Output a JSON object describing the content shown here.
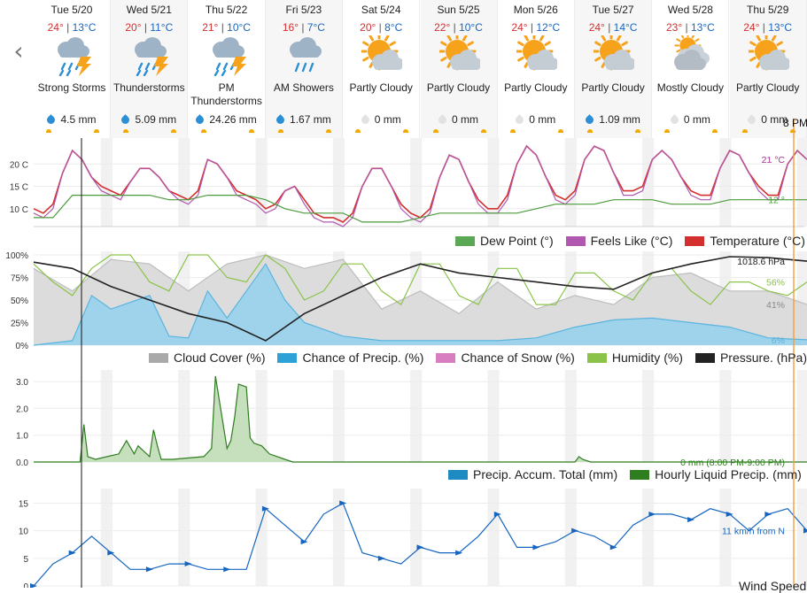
{
  "nav": {
    "back_icon": "chevron-left-icon"
  },
  "days": [
    {
      "date": "Tue 5/20",
      "hi": "24°",
      "lo": "13°C",
      "cond": "Strong Storms",
      "icon": "thunderstorm-icon",
      "precip": "4.5 mm",
      "wet": true
    },
    {
      "date": "Wed 5/21",
      "hi": "20°",
      "lo": "11°C",
      "cond": "Thunderstorms",
      "icon": "thunderstorm-icon",
      "precip": "5.09 mm",
      "wet": true
    },
    {
      "date": "Thu 5/22",
      "hi": "21°",
      "lo": "10°C",
      "cond": "PM Thunderstorms",
      "icon": "thunderstorm-icon",
      "precip": "24.26 mm",
      "wet": true
    },
    {
      "date": "Fri 5/23",
      "hi": "16°",
      "lo": "7°C",
      "cond": "AM Showers",
      "icon": "showers-icon",
      "precip": "1.67 mm",
      "wet": true
    },
    {
      "date": "Sat 5/24",
      "hi": "20°",
      "lo": "8°C",
      "cond": "Partly Cloudy",
      "icon": "partly-cloudy-icon",
      "precip": "0 mm",
      "wet": false
    },
    {
      "date": "Sun 5/25",
      "hi": "22°",
      "lo": "10°C",
      "cond": "Partly Cloudy",
      "icon": "partly-cloudy-icon",
      "precip": "0 mm",
      "wet": false
    },
    {
      "date": "Mon 5/26",
      "hi": "24°",
      "lo": "12°C",
      "cond": "Partly Cloudy",
      "icon": "partly-cloudy-icon",
      "precip": "0 mm",
      "wet": false
    },
    {
      "date": "Tue 5/27",
      "hi": "24°",
      "lo": "14°C",
      "cond": "Partly Cloudy",
      "icon": "partly-cloudy-icon",
      "precip": "1.09 mm",
      "wet": true
    },
    {
      "date": "Wed 5/28",
      "hi": "23°",
      "lo": "13°C",
      "cond": "Mostly Cloudy",
      "icon": "mostly-cloudy-icon",
      "precip": "0 mm",
      "wet": false
    },
    {
      "date": "Thu 5/29",
      "hi": "24°",
      "lo": "13°C",
      "cond": "Partly Cloudy",
      "icon": "partly-cloudy-icon",
      "precip": "0 mm",
      "wet": false
    }
  ],
  "cursor_label": "8 PM",
  "chart_data": [
    {
      "type": "line",
      "yticks": [
        "20 C",
        "15 C",
        "10 C"
      ],
      "series": [
        {
          "name": "Temperature (°C)",
          "color": "#d32f2f",
          "current_label": "21 °C",
          "x_days": [
            0,
            0.125,
            0.25,
            0.375,
            0.5,
            0.625,
            0.75,
            0.875,
            1,
            1.125,
            1.25,
            1.375,
            1.5,
            1.625,
            1.75,
            1.875,
            2,
            2.125,
            2.25,
            2.375,
            2.5,
            2.625,
            2.75,
            2.875,
            3,
            3.125,
            3.25,
            3.375,
            3.5,
            3.625,
            3.75,
            3.875,
            4,
            4.125,
            4.25,
            4.375,
            4.5,
            4.625,
            4.75,
            4.875,
            5,
            5.125,
            5.25,
            5.375,
            5.5,
            5.625,
            5.75,
            5.875,
            6,
            6.125,
            6.25,
            6.375,
            6.5,
            6.625,
            6.75,
            6.875,
            7,
            7.125,
            7.25,
            7.375,
            7.5,
            7.625,
            7.75,
            7.875,
            8,
            8.125,
            8.25,
            8.375,
            8.5,
            8.625,
            8.75,
            8.875,
            9,
            9.125,
            9.25,
            9.375,
            9.5,
            9.625,
            9.75,
            9.875,
            10
          ],
          "values": [
            10,
            9,
            11,
            18,
            23,
            21,
            17,
            15,
            14,
            13,
            16,
            19,
            19,
            17,
            14,
            13,
            12,
            14,
            21,
            20,
            17,
            14,
            13,
            12,
            10,
            11,
            14,
            15,
            12,
            9,
            8,
            8,
            7,
            9,
            15,
            19,
            19,
            15,
            11,
            9,
            8,
            10,
            17,
            22,
            21,
            16,
            12,
            10,
            10,
            13,
            20,
            24,
            22,
            17,
            13,
            12,
            14,
            21,
            24,
            23,
            18,
            14,
            14,
            15,
            21,
            23,
            21,
            17,
            14,
            13,
            13,
            19,
            23,
            22,
            18,
            15,
            13,
            13,
            20,
            23,
            21
          ]
        },
        {
          "name": "Feels Like (°C)",
          "color": "#b058b0",
          "current_label": "21 °C",
          "x_days": [
            0,
            0.125,
            0.25,
            0.375,
            0.5,
            0.625,
            0.75,
            0.875,
            1,
            1.125,
            1.25,
            1.375,
            1.5,
            1.625,
            1.75,
            1.875,
            2,
            2.125,
            2.25,
            2.375,
            2.5,
            2.625,
            2.75,
            2.875,
            3,
            3.125,
            3.25,
            3.375,
            3.5,
            3.625,
            3.75,
            3.875,
            4,
            4.125,
            4.25,
            4.375,
            4.5,
            4.625,
            4.75,
            4.875,
            5,
            5.125,
            5.25,
            5.375,
            5.5,
            5.625,
            5.75,
            5.875,
            6,
            6.125,
            6.25,
            6.375,
            6.5,
            6.625,
            6.75,
            6.875,
            7,
            7.125,
            7.25,
            7.375,
            7.5,
            7.625,
            7.75,
            7.875,
            8,
            8.125,
            8.25,
            8.375,
            8.5,
            8.625,
            8.75,
            8.875,
            9,
            9.125,
            9.25,
            9.375,
            9.5,
            9.625,
            9.75,
            9.875,
            10
          ],
          "values": [
            9,
            8,
            10,
            18,
            23,
            21,
            17,
            14,
            13,
            12,
            16,
            19,
            19,
            17,
            14,
            12,
            11,
            13,
            21,
            20,
            17,
            13,
            12,
            11,
            9,
            10,
            14,
            15,
            11,
            8,
            7,
            7,
            6,
            8,
            15,
            19,
            19,
            15,
            10,
            8,
            7,
            9,
            17,
            22,
            21,
            16,
            11,
            9,
            9,
            12,
            20,
            24,
            22,
            17,
            12,
            11,
            13,
            21,
            24,
            23,
            18,
            13,
            13,
            14,
            21,
            23,
            21,
            17,
            13,
            12,
            12,
            19,
            23,
            22,
            18,
            14,
            12,
            12,
            20,
            23,
            21
          ]
        },
        {
          "name": "Dew Point (°)",
          "color": "#4c9a3c",
          "current_label": "12 °",
          "x_days": [
            0,
            0.25,
            0.5,
            0.75,
            1,
            1.25,
            1.5,
            1.75,
            2,
            2.25,
            2.5,
            2.75,
            3,
            3.25,
            3.5,
            3.75,
            4,
            4.25,
            4.5,
            4.75,
            5,
            5.25,
            5.5,
            5.75,
            6,
            6.25,
            6.5,
            6.75,
            7,
            7.25,
            7.5,
            7.75,
            8,
            8.25,
            8.5,
            8.75,
            9,
            9.25,
            9.5,
            9.75,
            10
          ],
          "values": [
            8,
            8,
            13,
            13,
            13,
            13,
            13,
            12,
            12,
            13,
            13,
            13,
            12,
            10,
            9,
            9,
            9,
            7,
            7,
            7,
            8,
            9,
            9,
            9,
            9,
            9,
            10,
            11,
            11,
            11,
            12,
            12,
            12,
            11,
            11,
            11,
            12,
            12,
            12,
            12,
            12
          ]
        }
      ],
      "ylim": [
        6,
        25
      ]
    },
    {
      "type": "area",
      "yticks": [
        "100%",
        "75%",
        "50%",
        "25%",
        "0%"
      ],
      "series": [
        {
          "name": "Cloud Cover (%)",
          "color": "#9e9e9e",
          "current_label": "41%",
          "x_days": [
            0,
            0.5,
            1,
            1.5,
            2,
            2.5,
            3,
            3.5,
            4,
            4.5,
            5,
            5.5,
            6,
            6.5,
            7,
            7.5,
            8,
            8.5,
            9,
            9.5,
            10
          ],
          "values": [
            85,
            60,
            95,
            90,
            60,
            90,
            100,
            85,
            95,
            40,
            60,
            35,
            70,
            40,
            55,
            45,
            75,
            80,
            60,
            60,
            45
          ]
        },
        {
          "name": "Chance of Precip. (%)",
          "color": "#5ab4de",
          "current_label": "6%",
          "x_days": [
            0,
            0.5,
            0.75,
            1,
            1.5,
            1.75,
            2,
            2.25,
            2.5,
            2.75,
            3,
            3.25,
            3.5,
            4,
            4.5,
            5,
            5.5,
            6,
            6.5,
            7,
            7.5,
            8,
            8.5,
            9,
            9.5,
            10
          ],
          "values": [
            0,
            5,
            55,
            40,
            55,
            10,
            8,
            60,
            30,
            60,
            90,
            50,
            25,
            10,
            5,
            5,
            5,
            5,
            8,
            20,
            28,
            30,
            25,
            20,
            8,
            6
          ]
        },
        {
          "name": "Chance of Snow (%)",
          "color": "#d77dc0",
          "values": []
        },
        {
          "name": "Humidity (%)",
          "color": "#8bc34a",
          "current_label": "56%",
          "x_days": [
            0,
            0.25,
            0.5,
            0.75,
            1,
            1.25,
            1.5,
            1.75,
            2,
            2.25,
            2.5,
            2.75,
            3,
            3.25,
            3.5,
            3.75,
            4,
            4.25,
            4.5,
            4.75,
            5,
            5.25,
            5.5,
            5.75,
            6,
            6.25,
            6.5,
            6.75,
            7,
            7.25,
            7.5,
            7.75,
            8,
            8.25,
            8.5,
            8.75,
            9,
            9.25,
            9.5,
            9.75,
            10
          ],
          "values": [
            90,
            70,
            55,
            85,
            100,
            100,
            70,
            60,
            100,
            100,
            75,
            70,
            100,
            85,
            50,
            60,
            90,
            90,
            60,
            45,
            90,
            90,
            55,
            45,
            85,
            85,
            45,
            45,
            80,
            80,
            60,
            50,
            80,
            85,
            60,
            45,
            70,
            70,
            60,
            55,
            70
          ]
        },
        {
          "name": "Pressure. (hPa)",
          "color": "#222222",
          "current_label": "1018.6 hPa",
          "x_days": [
            0,
            0.5,
            1,
            1.5,
            2,
            2.5,
            3,
            3.5,
            4,
            4.5,
            5,
            5.5,
            6,
            6.5,
            7,
            7.5,
            8,
            8.5,
            9,
            9.5,
            10
          ],
          "values": [
            92,
            85,
            65,
            50,
            35,
            25,
            5,
            35,
            55,
            75,
            90,
            80,
            75,
            70,
            65,
            62,
            80,
            90,
            98,
            97,
            93
          ]
        }
      ],
      "ylim": [
        0,
        100
      ]
    },
    {
      "type": "area",
      "yticks": [
        "3.0",
        "2.0",
        "1.0",
        "0.0"
      ],
      "series": [
        {
          "name": "Precip. Accum. Total (mm)",
          "color": "#1e8ac2",
          "values": []
        },
        {
          "name": "Hourly Liquid Precip. (mm)",
          "color": "#2e7d1f",
          "current_label": "0 mm (8:00 PM-9:00 PM)",
          "x_days": [
            0,
            0.6,
            0.65,
            0.7,
            0.8,
            1.1,
            1.2,
            1.3,
            1.35,
            1.5,
            1.55,
            1.6,
            1.65,
            1.8,
            2.2,
            2.3,
            2.35,
            2.5,
            2.55,
            2.6,
            2.65,
            2.75,
            2.8,
            2.85,
            2.95,
            3.05,
            3.15,
            3.25,
            3.35,
            3.5,
            4,
            5,
            6,
            7,
            7.05,
            7.1,
            7.2,
            7.5,
            8,
            9,
            10
          ],
          "values": [
            0,
            0,
            1.4,
            0.2,
            0.1,
            0.3,
            0.8,
            0.3,
            0.6,
            0.2,
            1.2,
            0.6,
            0.1,
            0.1,
            0.2,
            0.5,
            3.2,
            0.5,
            0.8,
            1.7,
            2.9,
            2.8,
            0.9,
            0.7,
            0.6,
            0.3,
            0.2,
            0.1,
            0,
            0,
            0,
            0,
            0,
            0,
            0.2,
            0.1,
            0,
            0,
            0,
            0,
            0
          ]
        }
      ],
      "ylim": [
        0,
        3.3
      ]
    },
    {
      "type": "line",
      "yticks": [
        "15",
        "10",
        "5",
        "0"
      ],
      "series": [
        {
          "name": "Wind Speed (km/h)",
          "color": "#1565c0",
          "current_label": "11 km/h from N",
          "x_days": [
            0,
            0.25,
            0.5,
            0.75,
            1,
            1.25,
            1.5,
            1.75,
            2,
            2.25,
            2.5,
            2.75,
            3,
            3.25,
            3.5,
            3.75,
            4,
            4.25,
            4.5,
            4.75,
            5,
            5.25,
            5.5,
            5.75,
            6,
            6.25,
            6.5,
            6.75,
            7,
            7.25,
            7.5,
            7.75,
            8,
            8.25,
            8.5,
            8.75,
            9,
            9.25,
            9.5,
            9.75,
            10
          ],
          "values": [
            0,
            4,
            6,
            9,
            6,
            3,
            3,
            4,
            4,
            3,
            3,
            3,
            14,
            11,
            8,
            13,
            15,
            6,
            5,
            4,
            7,
            6,
            6,
            9,
            13,
            7,
            7,
            8,
            10,
            9,
            7,
            11,
            13,
            13,
            12,
            14,
            13,
            10,
            13,
            14,
            10
          ]
        }
      ],
      "ylim": [
        0,
        17
      ]
    }
  ],
  "legends": [
    [
      {
        "label": "Dew Point (°)",
        "color": "#5aa853"
      },
      {
        "label": "Feels Like (°C)",
        "color": "#b058b0"
      },
      {
        "label": "Temperature (°C)",
        "color": "#d32f2f"
      }
    ],
    [
      {
        "label": "Cloud Cover (%)",
        "color": "#a9a9a9"
      },
      {
        "label": "Chance of Precip. (%)",
        "color": "#2ea1d6"
      },
      {
        "label": "Chance of Snow (%)",
        "color": "#d77dc0"
      },
      {
        "label": "Humidity (%)",
        "color": "#8bc34a"
      },
      {
        "label": "Pressure. (hPa)",
        "color": "#222222"
      }
    ],
    [
      {
        "label": "Precip. Accum. Total (mm)",
        "color": "#1e8ac2"
      },
      {
        "label": "Hourly Liquid Precip. (mm)",
        "color": "#2e7d1f"
      }
    ]
  ],
  "bottom_legend_label": "Wind Speed"
}
